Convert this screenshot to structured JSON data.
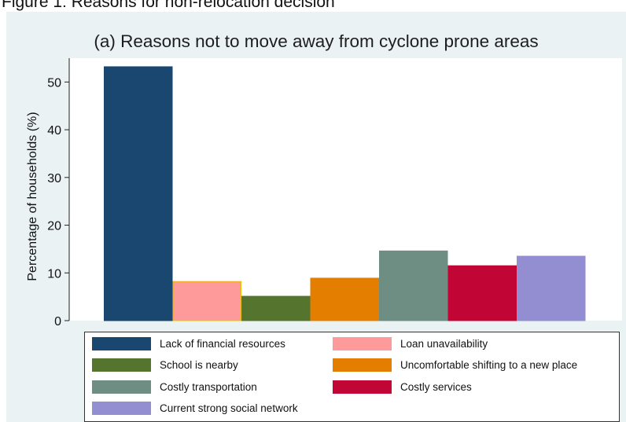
{
  "figure_caption": "Figure 1: Reasons for non-relocation decision",
  "chart_data": {
    "type": "bar",
    "title": "(a) Reasons not to move away from cyclone prone areas",
    "xlabel": "",
    "ylabel": "Percentage of households (%)",
    "ylim": [
      0,
      55
    ],
    "yticks": [
      0,
      10,
      20,
      30,
      40,
      50
    ],
    "grid": false,
    "legend_position": "bottom",
    "series": [
      {
        "name": "Lack of financial resources",
        "value": 53.2,
        "color": "#1a476f",
        "border": "#1a476f"
      },
      {
        "name": "Loan unavailability",
        "value": 8.2,
        "color": "#ff9a9a",
        "border": "#e8c000"
      },
      {
        "name": "School is nearby",
        "value": 5.1,
        "color": "#55752f",
        "border": "#55752f"
      },
      {
        "name": "Uncomfortable shifting to a new place",
        "value": 8.9,
        "color": "#e37e00",
        "border": "#e37e00"
      },
      {
        "name": "Costly transportation",
        "value": 14.6,
        "color": "#6e8e84",
        "border": "#6e8e84"
      },
      {
        "name": "Costly services",
        "value": 11.5,
        "color": "#c10534",
        "border": "#c10534"
      },
      {
        "name": "Current strong social network",
        "value": 13.5,
        "color": "#938dd2",
        "border": "#938dd2"
      }
    ]
  }
}
